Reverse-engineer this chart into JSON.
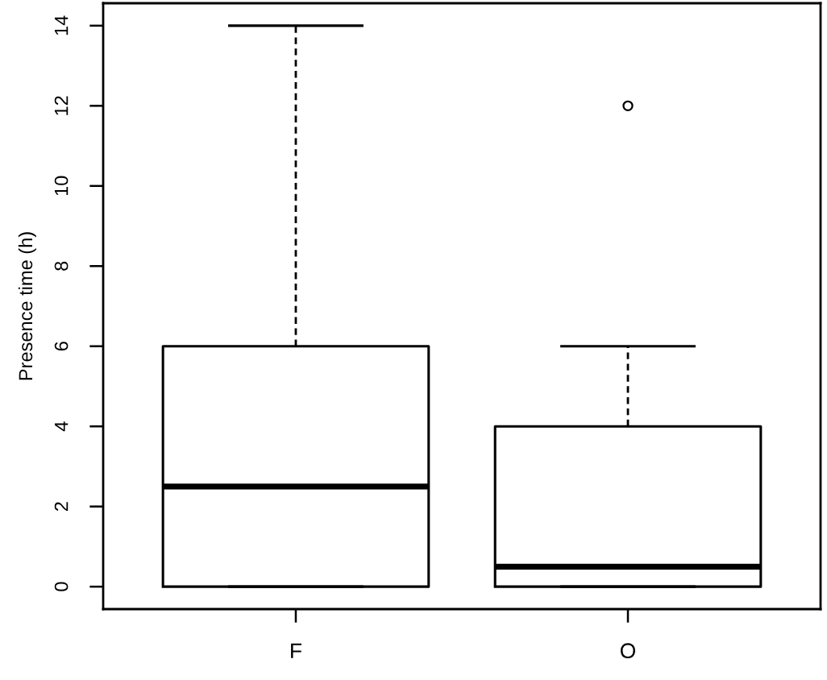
{
  "chart_data": {
    "type": "box",
    "ylabel": "Presence time (h)",
    "categories": [
      "F",
      "O"
    ],
    "boxes": [
      {
        "low": 0,
        "q1": 0,
        "median": 2.5,
        "q3": 6,
        "high": 14
      },
      {
        "low": 0,
        "q1": 0,
        "median": 0.5,
        "q3": 4,
        "high": 6,
        "outliers": [
          12
        ]
      }
    ],
    "ylim": [
      -0.56,
      14.56
    ],
    "yticks": [
      0,
      2,
      4,
      6,
      8,
      10,
      12,
      14
    ]
  }
}
